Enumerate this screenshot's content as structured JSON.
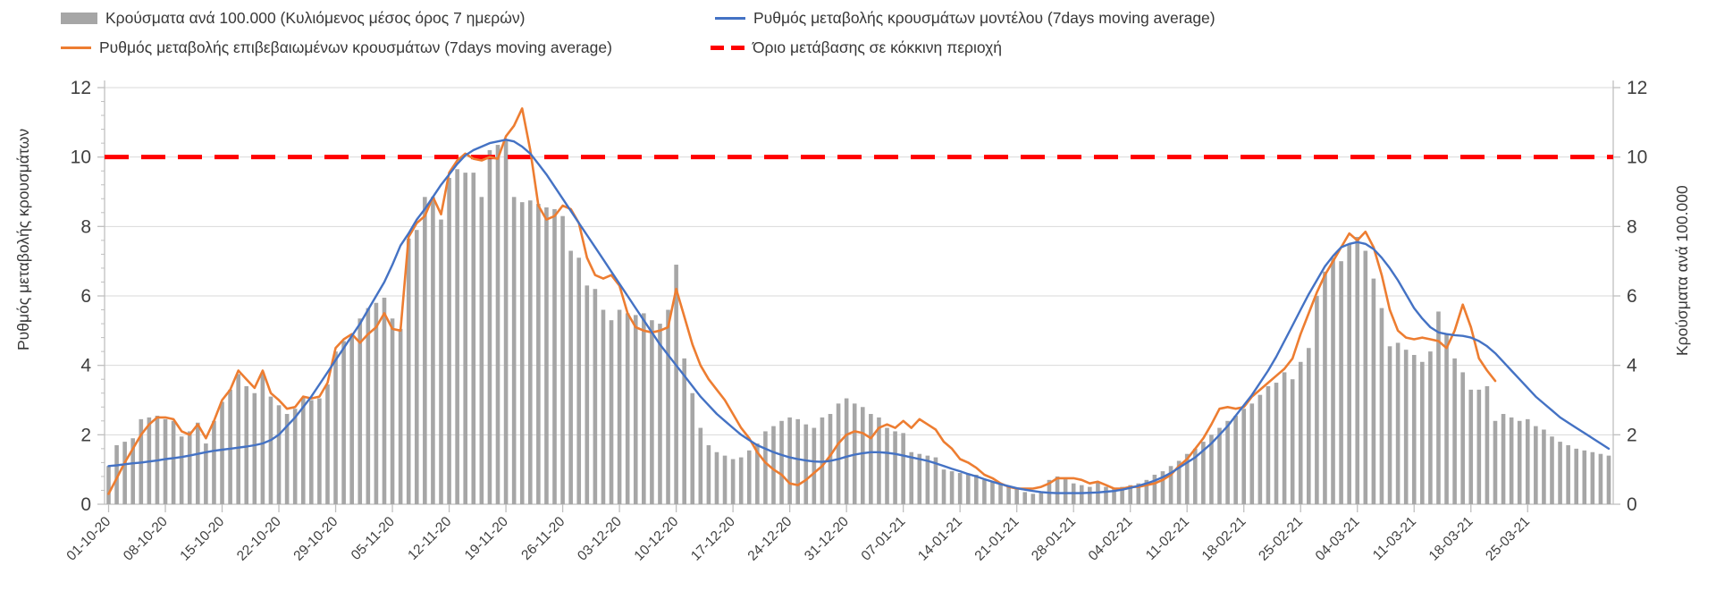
{
  "page": {
    "background": "#ffffff"
  },
  "colors": {
    "bar": "#a6a6a6",
    "confirmed_line": "#ed7d31",
    "model_line": "#4472c4",
    "threshold_line": "#ff0000",
    "grid": "#d9d9d9",
    "axis": "#bfbfbf",
    "text": "#3f3f3f"
  },
  "legend": {
    "bar_label": "Κρούσματα ανά 100.000 (Κυλιόμενος μέσος όρος 7 ημερών)",
    "confirmed_label": "Ρυθμός μεταβολής επιβεβαιωμένων κρουσμάτων (7days moving average)",
    "model_label": "Ρυθμός μεταβολής κρουσμάτων μοντέλου (7days moving average)",
    "threshold_label": "Όριο μετάβασης σε κόκκινη περιοχή"
  },
  "chart_data": {
    "type": "combo",
    "title": "",
    "grid": true,
    "left_axis": {
      "title": "Ρυθμός μεταβολής κρουσμάτων",
      "range": [
        0,
        12
      ],
      "ticks": [
        0,
        2,
        4,
        6,
        8,
        10,
        12
      ]
    },
    "right_axis": {
      "title": "Κρούσματα ανά 100.000",
      "range": [
        0,
        12
      ],
      "ticks": [
        0,
        2,
        4,
        6,
        8,
        10,
        12
      ]
    },
    "x_tick_labels": [
      "01-10-20",
      "08-10-20",
      "15-10-20",
      "22-10-20",
      "29-10-20",
      "05-11-20",
      "12-11-20",
      "19-11-20",
      "26-11-20",
      "03-12-20",
      "10-12-20",
      "17-12-20",
      "24-12-20",
      "31-12-20",
      "07-01-21",
      "14-01-21",
      "21-01-21",
      "28-01-21",
      "04-02-21",
      "11-02-21",
      "18-02-21",
      "25-02-21",
      "04-03-21",
      "11-03-21",
      "18-03-21",
      "25-03-21"
    ],
    "x_tick_every_n_days": 7,
    "threshold": {
      "value": 10,
      "label": "Όριο μετάβασης σε κόκκινη περιοχή"
    },
    "bar_series": {
      "name": "Κρούσματα ανά 100.000 (Κυλιόμενος μέσος όρος 7 ημερών)",
      "start_date": "01-10-20",
      "values": [
        1.1,
        1.7,
        1.8,
        1.9,
        2.45,
        2.5,
        2.55,
        2.45,
        2.4,
        1.95,
        2.1,
        2.35,
        1.75,
        2.4,
        2.95,
        3.3,
        3.75,
        3.4,
        3.2,
        3.8,
        3.1,
        2.85,
        2.6,
        2.75,
        3.05,
        3.0,
        3.05,
        3.45,
        4.4,
        4.7,
        4.9,
        5.35,
        5.65,
        5.8,
        5.95,
        5.35,
        5.05,
        7.65,
        7.9,
        8.85,
        8.85,
        8.2,
        9.4,
        9.65,
        9.55,
        9.55,
        8.85,
        10.2,
        10.35,
        10.5,
        8.85,
        8.7,
        8.75,
        8.65,
        8.55,
        8.5,
        8.3,
        7.3,
        7.1,
        6.3,
        6.2,
        5.6,
        5.3,
        5.6,
        5.5,
        5.45,
        5.5,
        5.3,
        5.2,
        5.6,
        6.9,
        4.2,
        3.2,
        2.2,
        1.7,
        1.5,
        1.4,
        1.3,
        1.35,
        1.55,
        1.75,
        2.1,
        2.25,
        2.4,
        2.5,
        2.45,
        2.3,
        2.2,
        2.5,
        2.6,
        2.9,
        3.05,
        2.9,
        2.8,
        2.6,
        2.5,
        2.2,
        2.1,
        2.05,
        1.5,
        1.45,
        1.4,
        1.35,
        1.0,
        0.95,
        0.9,
        0.88,
        0.85,
        0.7,
        0.65,
        0.6,
        0.5,
        0.45,
        0.35,
        0.3,
        0.35,
        0.7,
        0.8,
        0.75,
        0.6,
        0.55,
        0.5,
        0.65,
        0.5,
        0.45,
        0.5,
        0.55,
        0.6,
        0.7,
        0.85,
        0.95,
        1.1,
        1.25,
        1.45,
        1.6,
        1.8,
        2.0,
        2.2,
        2.4,
        2.55,
        2.75,
        2.9,
        3.15,
        3.4,
        3.5,
        3.8,
        3.6,
        4.1,
        4.5,
        6.0,
        6.7,
        7.1,
        7.0,
        7.5,
        7.7,
        7.3,
        6.5,
        5.65,
        4.55,
        4.65,
        4.45,
        4.3,
        4.1,
        4.4,
        5.55,
        4.9,
        4.2,
        3.8,
        3.3,
        3.3,
        3.4,
        2.4,
        2.6,
        2.5,
        2.4,
        2.45,
        2.25,
        2.15,
        1.95,
        1.8,
        1.7,
        1.6,
        1.55,
        1.5,
        1.45,
        1.4
      ]
    },
    "line_series": [
      {
        "name": "Ρυθμός μεταβολής επιβεβαιωμένων κρουσμάτων (7days moving average)",
        "color_key": "confirmed_line",
        "values": [
          0.3,
          0.75,
          1.2,
          1.6,
          2.0,
          2.3,
          2.5,
          2.5,
          2.45,
          2.1,
          2.0,
          2.3,
          1.9,
          2.4,
          3.0,
          3.3,
          3.85,
          3.6,
          3.35,
          3.85,
          3.2,
          3.0,
          2.75,
          2.8,
          3.1,
          3.05,
          3.1,
          3.5,
          4.5,
          4.75,
          4.9,
          4.65,
          4.9,
          5.1,
          5.5,
          5.05,
          5.0,
          7.7,
          8.1,
          8.3,
          8.85,
          8.35,
          9.55,
          9.9,
          10.1,
          9.95,
          9.9,
          10.0,
          9.95,
          10.6,
          10.9,
          11.4,
          10.2,
          8.6,
          8.2,
          8.3,
          8.6,
          8.5,
          8.1,
          7.1,
          6.6,
          6.5,
          6.6,
          6.3,
          5.5,
          5.1,
          5.0,
          4.95,
          5.0,
          5.1,
          6.2,
          5.4,
          4.6,
          4.0,
          3.6,
          3.3,
          3.0,
          2.6,
          2.2,
          1.9,
          1.5,
          1.2,
          1.0,
          0.85,
          0.6,
          0.55,
          0.7,
          0.9,
          1.1,
          1.4,
          1.75,
          2.0,
          2.1,
          2.05,
          1.9,
          2.2,
          2.3,
          2.2,
          2.4,
          2.2,
          2.45,
          2.3,
          2.15,
          1.8,
          1.6,
          1.3,
          1.2,
          1.05,
          0.85,
          0.75,
          0.6,
          0.5,
          0.45,
          0.45,
          0.45,
          0.5,
          0.6,
          0.75,
          0.75,
          0.75,
          0.7,
          0.6,
          0.65,
          0.55,
          0.45,
          0.45,
          0.5,
          0.5,
          0.55,
          0.6,
          0.7,
          0.85,
          1.1,
          1.3,
          1.6,
          1.9,
          2.3,
          2.75,
          2.8,
          2.75,
          2.8,
          3.1,
          3.3,
          3.5,
          3.7,
          3.9,
          4.2,
          4.9,
          5.5,
          6.1,
          6.6,
          7.0,
          7.4,
          7.8,
          7.6,
          7.85,
          7.4,
          6.6,
          5.6,
          5.0,
          4.8,
          4.75,
          4.8,
          4.75,
          4.7,
          4.5,
          5.0,
          5.75,
          5.1,
          4.2,
          3.85,
          3.55
        ]
      },
      {
        "name": "Ρυθμός μεταβολής κρουσμάτων μοντέλου (7days moving average)",
        "color_key": "model_line",
        "values": [
          1.1,
          1.12,
          1.15,
          1.18,
          1.2,
          1.23,
          1.26,
          1.3,
          1.33,
          1.36,
          1.4,
          1.45,
          1.5,
          1.54,
          1.57,
          1.6,
          1.63,
          1.66,
          1.7,
          1.75,
          1.85,
          2.0,
          2.25,
          2.5,
          2.8,
          3.1,
          3.45,
          3.8,
          4.15,
          4.5,
          4.85,
          5.2,
          5.6,
          6.0,
          6.4,
          6.9,
          7.45,
          7.8,
          8.2,
          8.5,
          8.85,
          9.2,
          9.5,
          9.8,
          10.05,
          10.2,
          10.3,
          10.4,
          10.45,
          10.5,
          10.45,
          10.3,
          10.1,
          9.8,
          9.5,
          9.15,
          8.8,
          8.45,
          8.1,
          7.75,
          7.4,
          7.05,
          6.7,
          6.35,
          6.0,
          5.65,
          5.3,
          4.95,
          4.6,
          4.3,
          4.0,
          3.7,
          3.4,
          3.1,
          2.85,
          2.6,
          2.4,
          2.2,
          2.0,
          1.85,
          1.7,
          1.6,
          1.5,
          1.42,
          1.35,
          1.3,
          1.26,
          1.23,
          1.22,
          1.25,
          1.3,
          1.37,
          1.43,
          1.47,
          1.5,
          1.5,
          1.48,
          1.45,
          1.4,
          1.35,
          1.3,
          1.25,
          1.18,
          1.1,
          1.02,
          0.95,
          0.87,
          0.8,
          0.72,
          0.65,
          0.58,
          0.52,
          0.46,
          0.42,
          0.38,
          0.35,
          0.33,
          0.32,
          0.32,
          0.32,
          0.32,
          0.33,
          0.34,
          0.36,
          0.38,
          0.42,
          0.47,
          0.53,
          0.6,
          0.68,
          0.78,
          0.9,
          1.05,
          1.2,
          1.35,
          1.55,
          1.75,
          2.0,
          2.25,
          2.55,
          2.85,
          3.15,
          3.5,
          3.85,
          4.25,
          4.7,
          5.15,
          5.6,
          6.05,
          6.45,
          6.85,
          7.15,
          7.4,
          7.5,
          7.55,
          7.5,
          7.35,
          7.1,
          6.8,
          6.45,
          6.05,
          5.65,
          5.35,
          5.1,
          4.95,
          4.9,
          4.87,
          4.85,
          4.8,
          4.7,
          4.55,
          4.35,
          4.1,
          3.85,
          3.6,
          3.35,
          3.1,
          2.9,
          2.7,
          2.5,
          2.35,
          2.2,
          2.05,
          1.9,
          1.75,
          1.6
        ]
      }
    ]
  }
}
